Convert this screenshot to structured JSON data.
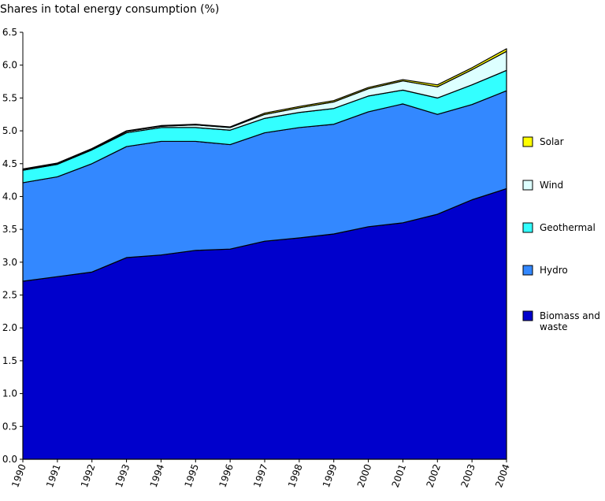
{
  "chart_data": {
    "type": "area",
    "stacked": true,
    "title": "",
    "xlabel": "",
    "ylabel": "Shares in total energy consumption (%)",
    "x": [
      "1990",
      "1991",
      "1992",
      "1993",
      "1994",
      "1995",
      "1996",
      "1997",
      "1998",
      "1999",
      "2000",
      "2001",
      "2002",
      "2003",
      "2004"
    ],
    "ylim": [
      0,
      6.5
    ],
    "yticks": [
      "0.0",
      "0.5",
      "1.0",
      "1.5",
      "2.0",
      "2.5",
      "3.0",
      "3.5",
      "4.0",
      "4.5",
      "5.0",
      "5.5",
      "6.0",
      "6.5"
    ],
    "grid": false,
    "legend_position": "right",
    "series": [
      {
        "name": "Biomass and waste",
        "color": "#0000CC",
        "values": [
          2.71,
          2.78,
          2.85,
          3.07,
          3.11,
          3.18,
          3.2,
          3.32,
          3.37,
          3.43,
          3.54,
          3.6,
          3.73,
          3.95,
          4.12
        ]
      },
      {
        "name": "Hydro",
        "color": "#3388FF",
        "values": [
          1.5,
          1.52,
          1.65,
          1.69,
          1.73,
          1.66,
          1.59,
          1.65,
          1.68,
          1.67,
          1.75,
          1.81,
          1.52,
          1.45,
          1.49
        ]
      },
      {
        "name": "Geothermal",
        "color": "#33FFFF",
        "values": [
          0.19,
          0.19,
          0.21,
          0.21,
          0.21,
          0.21,
          0.22,
          0.22,
          0.23,
          0.24,
          0.24,
          0.21,
          0.25,
          0.3,
          0.31
        ]
      },
      {
        "name": "Wind",
        "color": "#DDFFFF",
        "values": [
          0.01,
          0.01,
          0.01,
          0.02,
          0.02,
          0.04,
          0.04,
          0.06,
          0.07,
          0.1,
          0.11,
          0.14,
          0.17,
          0.23,
          0.29
        ]
      },
      {
        "name": "Solar",
        "color": "#FFFF00",
        "values": [
          0.01,
          0.01,
          0.01,
          0.01,
          0.01,
          0.01,
          0.01,
          0.02,
          0.02,
          0.02,
          0.02,
          0.02,
          0.03,
          0.03,
          0.04
        ]
      }
    ]
  }
}
